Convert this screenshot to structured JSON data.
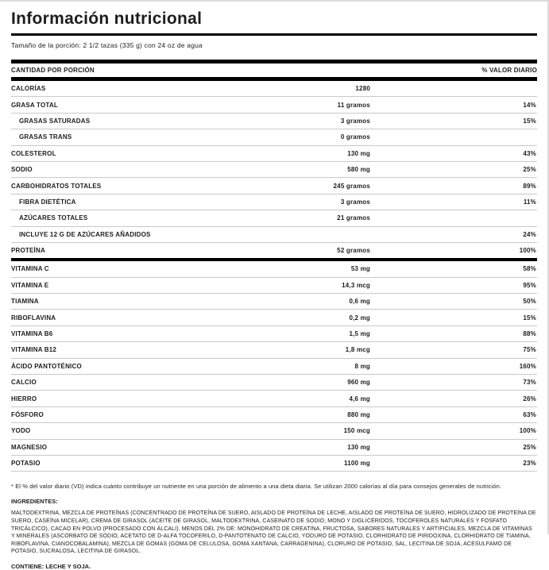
{
  "page": {
    "title": "Información nutricional",
    "serving": "Tamaño de la porción: 2 1/2 tazas (335 g) con 24 oz de agua"
  },
  "table": {
    "header": {
      "left": "CANTIDAD POR PORCIÓN",
      "right": "% VALOR DIARIO"
    },
    "rows": [
      {
        "name": "CALORÍAS",
        "amount": "1280",
        "dv": "",
        "indent": false,
        "thick_after": false
      },
      {
        "name": "GRASA TOTAL",
        "amount": "11 gramos",
        "dv": "14%",
        "indent": false,
        "thick_after": false
      },
      {
        "name": "GRASAS SATURADAS",
        "amount": "3 gramos",
        "dv": "15%",
        "indent": true,
        "thick_after": false
      },
      {
        "name": "GRASAS TRANS",
        "amount": "0 gramos",
        "dv": "",
        "indent": true,
        "thick_after": false
      },
      {
        "name": "COLESTEROL",
        "amount": "130 mg",
        "dv": "43%",
        "indent": false,
        "thick_after": false
      },
      {
        "name": "SODIO",
        "amount": "580 mg",
        "dv": "25%",
        "indent": false,
        "thick_after": false
      },
      {
        "name": "CARBOHIDRATOS TOTALES",
        "amount": "245 gramos",
        "dv": "89%",
        "indent": false,
        "thick_after": false
      },
      {
        "name": "FIBRA DIETÉTICA",
        "amount": "3 gramos",
        "dv": "11%",
        "indent": true,
        "thick_after": false
      },
      {
        "name": "AZÚCARES TOTALES",
        "amount": "21 gramos",
        "dv": "",
        "indent": true,
        "thick_after": false
      },
      {
        "name": "INCLUYE 12 G DE AZÚCARES AÑADIDOS",
        "amount": "",
        "dv": "24%",
        "indent": true,
        "thick_after": false
      },
      {
        "name": "PROTEÍNA",
        "amount": "52 gramos",
        "dv": "100%",
        "indent": false,
        "thick_after": true
      },
      {
        "name": "VITAMINA C",
        "amount": "53 mg",
        "dv": "58%",
        "indent": false,
        "thick_after": false
      },
      {
        "name": "VITAMINA E",
        "amount": "14,3 mcg",
        "dv": "95%",
        "indent": false,
        "thick_after": false
      },
      {
        "name": "TIAMINA",
        "amount": "0,6 mg",
        "dv": "50%",
        "indent": false,
        "thick_after": false
      },
      {
        "name": "RIBOFLAVINA",
        "amount": "0,2 mg",
        "dv": "15%",
        "indent": false,
        "thick_after": false
      },
      {
        "name": "VITAMINA B6",
        "amount": "1,5 mg",
        "dv": "88%",
        "indent": false,
        "thick_after": false
      },
      {
        "name": "VITAMINA B12",
        "amount": "1,8 mcg",
        "dv": "75%",
        "indent": false,
        "thick_after": false
      },
      {
        "name": "ÁCIDO PANTOTÉNICO",
        "amount": "8 mg",
        "dv": "160%",
        "indent": false,
        "thick_after": false
      },
      {
        "name": "CALCIO",
        "amount": "960 mg",
        "dv": "73%",
        "indent": false,
        "thick_after": false
      },
      {
        "name": "HIERRO",
        "amount": "4,6 mg",
        "dv": "26%",
        "indent": false,
        "thick_after": false
      },
      {
        "name": "FÓSFORO",
        "amount": "880 mg",
        "dv": "63%",
        "indent": false,
        "thick_after": false
      },
      {
        "name": "YODO",
        "amount": "150 mcg",
        "dv": "100%",
        "indent": false,
        "thick_after": false
      },
      {
        "name": "MAGNESIO",
        "amount": "130 mg",
        "dv": "25%",
        "indent": false,
        "thick_after": false
      },
      {
        "name": "POTASIO",
        "amount": "1100 mg",
        "dv": "23%",
        "indent": false,
        "thick_after": false
      }
    ]
  },
  "footnote": "* El % del valor diario (VD) indica cuánto contribuye un nutriente en una porción de alimento a una dieta diaria. Se utilizan 2000 calorías al día para consejos generales de nutrición.",
  "ingredients": {
    "label": "INGREDIENTES:",
    "text": "MALTODEXTRINA, MEZCLA DE PROTEÍNAS (CONCENTRADO DE PROTEÍNA DE SUERO, AISLADO DE PROTEÍNA DE LECHE, AISLADO DE PROTEÍNA DE SUERO, HIDROLIZADO DE PROTEÍNA DE SUERO, CASEÍNA MICELAR), CREMA DE GIRASOL (ACEITE DE GIRASOL, MALTODEXTRINA, CASEINATO DE SODIO, MONO Y DIGLICÉRIDOS, TOCOFEROLES NATURALES Y FOSFATO TRICÁLCICO), CACAO EN POLVO (PROCESADO CON ÁLCALI). MENOS DEL 2% DE: MONOHIDRATO DE CREATINA, FRUCTOSA, SABORES NATURALES Y ARTIFICIALES, MEZCLA DE VITAMINAS Y MINERALES (ASCORBATO DE SODIO, ACETATO DE D-ALFA TOCOFERILO, D-PANTOTENATO DE CALCIO, YODURO DE POTASIO, CLORHIDRATO DE PIRIDOXINA, CLORHIDRATO DE TIAMINA, RIBOFLAVINA, CIANOCOBALAMINA), MEZCLA DE GOMAS (GOMA DE CELULOSA, GOMA XANTANA, CARRAGENINA), CLORURO DE POTASIO, SAL, LECITINA DE SOJA, ACESULFAMO DE POTASIO, SUCRALOSA, LECITINA DE GIRASOL.",
    "contains": "CONTIENE: LECHE Y SOJA."
  },
  "colors": {
    "text": "#1d1d1b",
    "bar": "#000000",
    "rule": "#c9c9c9",
    "page_border": "#dcdcdc"
  }
}
